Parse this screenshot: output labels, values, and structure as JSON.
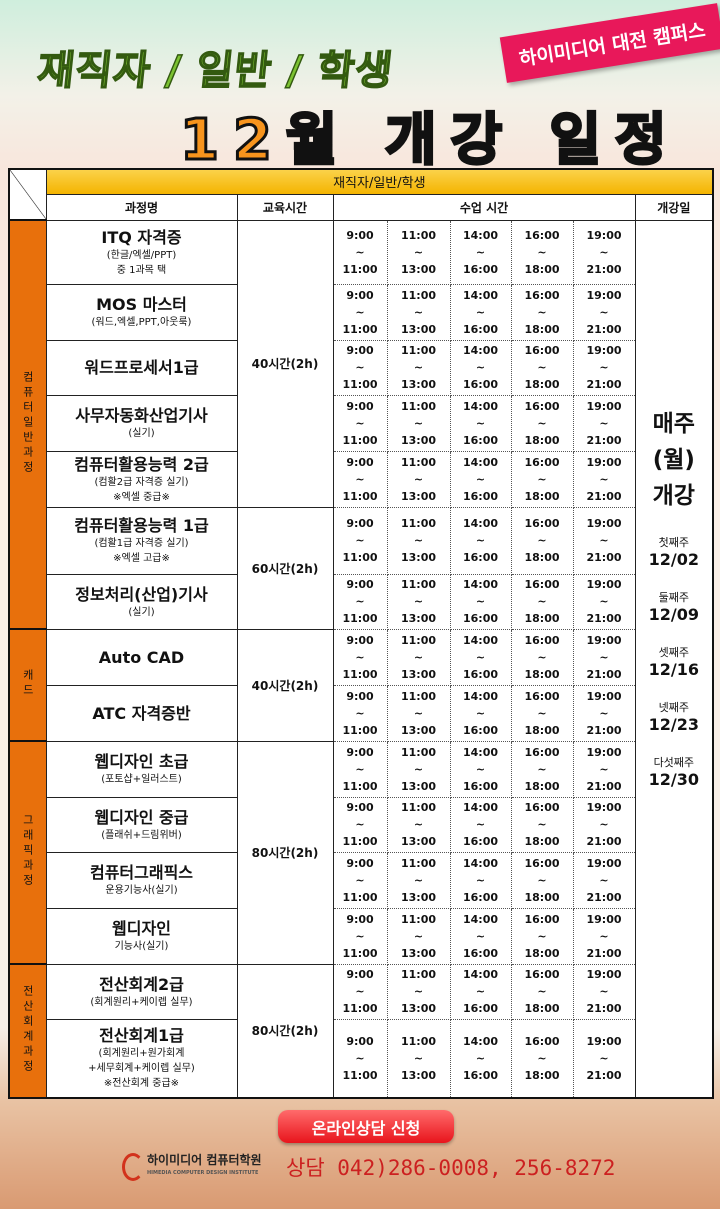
{
  "header": {
    "subtitle": "재직자 / 일반 / 학생",
    "badge": "하이미디어 대전 캠퍼스",
    "title": "12월 개강 일정"
  },
  "table": {
    "group_header": "재직자/일반/학생",
    "columns": {
      "course": "과정명",
      "hours": "교육시간",
      "time": "수업 시간",
      "open": "개강일"
    },
    "time_slots": [
      {
        "start": "9:00",
        "sep": "~",
        "end": "11:00"
      },
      {
        "start": "11:00",
        "sep": "~",
        "end": "13:00"
      },
      {
        "start": "14:00",
        "sep": "~",
        "end": "16:00"
      },
      {
        "start": "16:00",
        "sep": "~",
        "end": "18:00"
      },
      {
        "start": "19:00",
        "sep": "~",
        "end": "21:00"
      }
    ],
    "categories": [
      {
        "label": "컴퓨터일반과정",
        "rows": 7
      },
      {
        "label": "캐드",
        "rows": 2
      },
      {
        "label": "그래픽과정",
        "rows": 4
      },
      {
        "label": "전산회계과정",
        "rows": 2
      }
    ],
    "hour_groups": [
      {
        "label": "40시간(2h)",
        "rows": 5
      },
      {
        "label": "60시간(2h)",
        "rows": 2
      },
      {
        "label": "40시간(2h)",
        "rows": 2
      },
      {
        "label": "80시간(2h)",
        "rows": 4
      },
      {
        "label": "80시간(2h)",
        "rows": 2
      }
    ],
    "courses": [
      {
        "name": "ITQ 자격증",
        "desc": [
          "(한글/엑셀/PPT)",
          "중 1과목 택"
        ]
      },
      {
        "name": "MOS 마스터",
        "desc": [
          "(워드,엑셀,PPT,아웃룩)"
        ]
      },
      {
        "name": "워드프로세서1급",
        "desc": []
      },
      {
        "name": "사무자동화산업기사",
        "desc": [
          "(실기)"
        ]
      },
      {
        "name": "컴퓨터활용능력 2급",
        "desc": [
          "(컴활2급 자격증 실기)",
          "※엑셀 중급※"
        ]
      },
      {
        "name": "컴퓨터활용능력 1급",
        "desc": [
          "(컴활1급 자격증 실기)",
          "※엑셀 고급※"
        ]
      },
      {
        "name": "정보처리(산업)기사",
        "desc": [
          "(실기)"
        ]
      },
      {
        "name": "Auto CAD",
        "desc": []
      },
      {
        "name": "ATC 자격증반",
        "desc": []
      },
      {
        "name": "웹디자인 초급",
        "desc": [
          "(포토샵+일러스트)"
        ]
      },
      {
        "name": "웹디자인 중급",
        "desc": [
          "(플래쉬+드림위버)"
        ]
      },
      {
        "name": "컴퓨터그래픽스",
        "desc": [
          "운용기능사(실기)"
        ]
      },
      {
        "name": "웹디자인",
        "desc": [
          "기능사(실기)"
        ]
      },
      {
        "name": "전산회계2급",
        "desc": [
          "(회계원리+케이렙 실무)"
        ]
      },
      {
        "name": "전산회계1급",
        "desc": [
          "(회계원리+원가회계",
          "+세무회계+케이렙 실무)",
          "※전산회계 중급※"
        ]
      }
    ],
    "open": {
      "line1": "매주",
      "line2": "(월)",
      "line3": "개강",
      "weeks": [
        {
          "label": "첫째주",
          "date": "12/02"
        },
        {
          "label": "둘째주",
          "date": "12/09"
        },
        {
          "label": "셋째주",
          "date": "12/16"
        },
        {
          "label": "넷째주",
          "date": "12/23"
        },
        {
          "label": "다섯째주",
          "date": "12/30"
        }
      ]
    }
  },
  "footer": {
    "online_button": "온라인상담 신청",
    "logo_name": "하이미디어 컴퓨터학원",
    "logo_sub": "HIMEDIA COMPUTER DESIGN INSTITUTE",
    "phone": "상담 042)286-0008, 256-8272"
  },
  "colors": {
    "category": "#e8700c",
    "header": "#f4b400",
    "badge": "#e8185a",
    "title": "#f7941d",
    "subtitle": "#7cc232",
    "phone": "#cc2020"
  }
}
